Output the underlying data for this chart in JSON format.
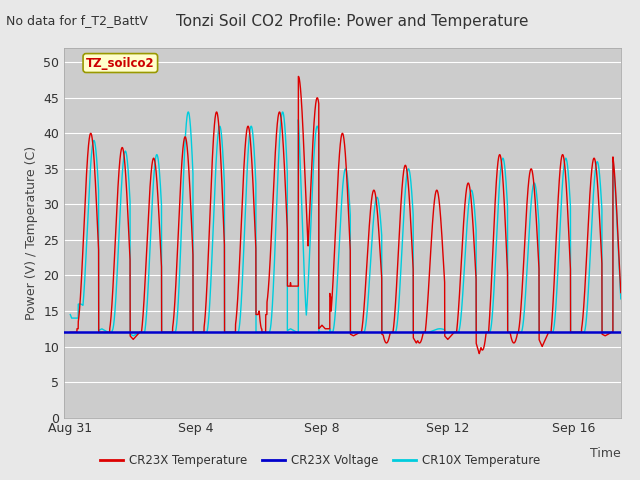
{
  "title": "Tonzi Soil CO2 Profile: Power and Temperature",
  "no_data_text": "No data for f_T2_BattV",
  "ylabel": "Power (V) / Temperature (C)",
  "xlabel": "Time",
  "ylim": [
    0,
    52
  ],
  "yticks": [
    0,
    5,
    10,
    15,
    20,
    25,
    30,
    35,
    40,
    45,
    50
  ],
  "fig_bg_color": "#e8e8e8",
  "plot_bg_color": "#cccccc",
  "grid_color": "#ffffff",
  "legend_label": "TZ_soilco2",
  "legend_box_facecolor": "#ffffcc",
  "legend_box_edgecolor": "#999900",
  "series_cr23x_temp_color": "#dd0000",
  "series_cr23x_temp_label": "CR23X Temperature",
  "series_cr23x_volt_color": "#0000cc",
  "series_cr23x_volt_label": "CR23X Voltage",
  "series_cr23x_volt_value": 12.0,
  "series_cr10x_temp_color": "#00ccdd",
  "series_cr10x_temp_label": "CR10X Temperature",
  "x_tick_labels": [
    "Aug 31",
    "Sep 4",
    "Sep 8",
    "Sep 12",
    "Sep 16"
  ],
  "x_tick_positions": [
    0,
    4,
    8,
    12,
    16
  ],
  "x_range": [
    -0.2,
    17.5
  ],
  "font_size": 9,
  "title_font_size": 11,
  "cr23x_peak_days": [
    0.65,
    1.65,
    2.65,
    3.65,
    4.65,
    5.65,
    6.65,
    7.25,
    7.85,
    8.65,
    9.65,
    10.65,
    11.65,
    12.65,
    13.65,
    14.65,
    15.65,
    16.65,
    17.2
  ],
  "cr23x_peak_vals": [
    40.0,
    38.0,
    36.5,
    39.5,
    43.0,
    41.0,
    43.0,
    48.0,
    45.0,
    40.0,
    32.0,
    35.5,
    32.0,
    33.0,
    37.0,
    35.0,
    37.0,
    36.5,
    37.5
  ],
  "cr23x_min_days": [
    0.0,
    1.0,
    2.0,
    3.0,
    4.0,
    5.0,
    6.0,
    7.0,
    8.0,
    9.0,
    10.0,
    11.0,
    12.0,
    13.0,
    14.0,
    15.0,
    16.0,
    17.0
  ],
  "cr23x_min_vals": [
    13.0,
    12.0,
    11.0,
    12.0,
    12.0,
    12.0,
    15.0,
    19.0,
    13.0,
    11.5,
    11.5,
    10.5,
    11.0,
    9.0,
    12.0,
    10.0,
    12.0,
    11.5
  ],
  "cr10x_peak_days": [
    0.3,
    0.75,
    1.75,
    2.75,
    3.75,
    4.75,
    5.75,
    6.75,
    7.15,
    7.85,
    8.75,
    9.75,
    10.75,
    11.75,
    12.75,
    13.75,
    14.75,
    15.75,
    16.75,
    17.2
  ],
  "cr10x_peak_vals": [
    16.0,
    39.0,
    37.5,
    37.0,
    43.0,
    41.0,
    41.0,
    43.0,
    46.5,
    41.0,
    35.0,
    31.0,
    35.0,
    12.5,
    32.0,
    36.5,
    33.0,
    36.5,
    36.0,
    37.0
  ],
  "cr10x_min_days": [
    0.0,
    1.0,
    2.0,
    3.0,
    4.0,
    5.0,
    6.0,
    7.0,
    8.0,
    9.0,
    10.0,
    11.0,
    12.0,
    13.0,
    14.0,
    15.0,
    16.0,
    17.0
  ],
  "cr10x_min_vals": [
    14.5,
    12.5,
    11.5,
    12.0,
    12.0,
    12.0,
    12.0,
    12.5,
    12.0,
    12.0,
    12.0,
    12.0,
    12.0,
    12.0,
    12.0,
    12.0,
    12.0,
    12.0
  ]
}
